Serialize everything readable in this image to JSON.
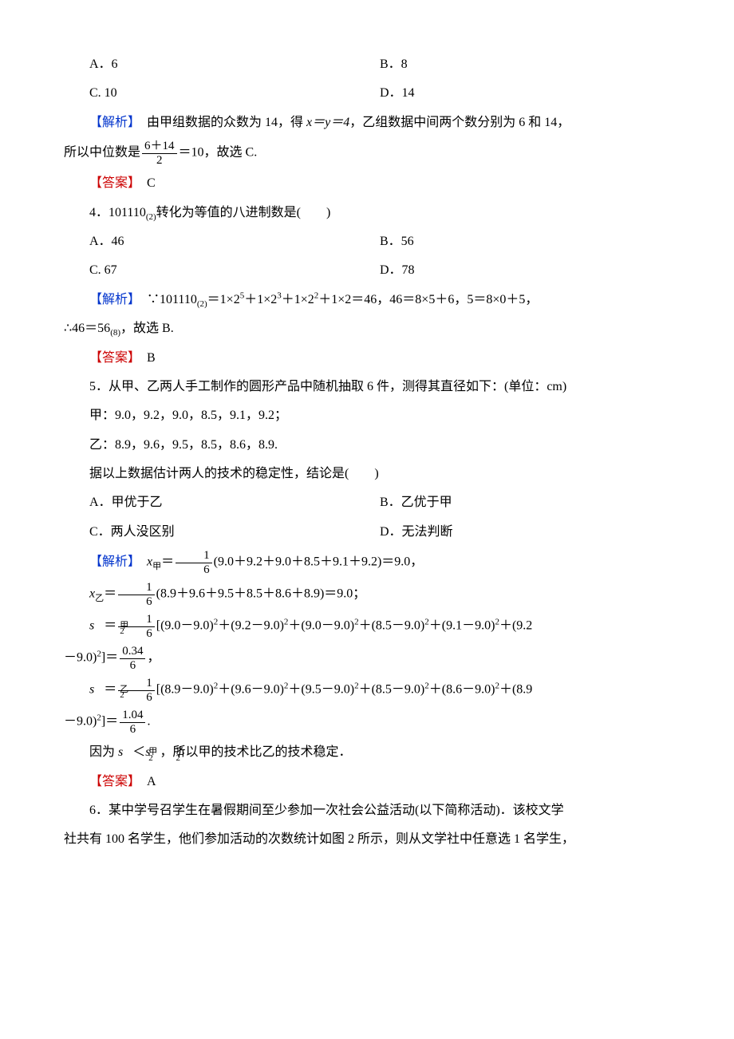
{
  "q3": {
    "options": {
      "a": "A．6",
      "b": "B．8",
      "c": "C. 10",
      "d": "D．14"
    },
    "analysis_label": "【解析】",
    "analysis_text1": "　由甲组数据的众数为 14，得 ",
    "analysis_math": "x＝y＝4",
    "analysis_text2": "，乙组数据中间两个数分别为 6 和 14，",
    "median_prefix": "所以中位数是",
    "median_num": "6＋14",
    "median_den": "2",
    "median_eq": "＝10，故选 C.",
    "answer_label": "【答案】",
    "answer": "　C"
  },
  "q4": {
    "stem": "4．101110(2)转化为等值的八进制数是(　　)",
    "stem_prefix": "4．101110",
    "stem_sub": "(2)",
    "stem_suffix": "转化为等值的八进制数是(　　)",
    "options": {
      "a": "A．46",
      "b": "B．56",
      "c": "C. 67",
      "d": "D．78"
    },
    "analysis_label": "【解析】",
    "analysis_line1a": "　∵101110",
    "analysis_line1b": "＝1×2",
    "analysis_line1c": "＋1×2",
    "analysis_line1d": "＋1×2",
    "analysis_line1e": "＋1×2＝46，46＝8×5＋6，5＝8×0＋5，",
    "analysis_line2": "∴46＝56",
    "analysis_line2_end": "，故选 B.",
    "answer_label": "【答案】",
    "answer": "　B"
  },
  "q5": {
    "stem": "5．从甲、乙两人手工制作的圆形产品中随机抽取 6 件，测得其直径如下：(单位：cm)",
    "line_jia": "甲：9.0，9.2，9.0，8.5，9.1，9.2；",
    "line_yi": "乙：8.9，9.6，9.5，8.5，8.6，8.9.",
    "question": "据以上数据估计两人的技术的稳定性，结论是(　　)",
    "options": {
      "a": "A．甲优于乙",
      "b": "B．乙优于甲",
      "c": "C．两人没区别",
      "d": "D．无法判断"
    },
    "analysis_label": "【解析】",
    "mean_jia_prefix": "　x",
    "mean_jia_sub": "甲",
    "mean_jia_eq": "＝",
    "one_over_six_num": "1",
    "one_over_six_den": "6",
    "mean_jia_expr": "(9.0＋9.2＋9.0＋8.5＋9.1＋9.2)＝9.0，",
    "mean_yi_prefix": "x",
    "mean_yi_sub": "乙",
    "mean_yi_expr": "(8.9＋9.6＋9.5＋8.5＋8.6＋8.9)＝9.0；",
    "var_jia_p1": "[(9.0－9.0)",
    "var_jia_p2": "＋(9.2－9.0)",
    "var_jia_p3": "＋(9.0－9.0)",
    "var_jia_p4": "＋(8.5－9.0)",
    "var_jia_p5": "＋(9.1－9.0)",
    "var_jia_p6": "＋(9.2",
    "var_jia_end": "－9.0)",
    "var_jia_result_num": "0.34",
    "var_jia_result_den": "6",
    "var_jia_tail": "，",
    "var_yi_p1": "[(8.9－9.0)",
    "var_yi_p2": "＋(9.6－9.0)",
    "var_yi_p3": "＋(9.5－9.0)",
    "var_yi_p4": "＋(8.5－9.0)",
    "var_yi_p5": "＋(8.6－9.0)",
    "var_yi_p6": "＋(8.9",
    "var_yi_end": "－9.0)",
    "var_yi_result_num": "1.04",
    "var_yi_result_den": "6",
    "var_yi_tail": ".",
    "conclusion_a": "因为 ",
    "conclusion_sym1": "s",
    "conclusion_sup1": "甲",
    "conclusion_lt": "＜",
    "conclusion_sym2": "s",
    "conclusion_sup2": "乙",
    "conclusion_b": "，所以甲的技术比乙的技术稳定．",
    "answer_label": "【答案】",
    "answer": "　A"
  },
  "q6": {
    "line1": "6．某中学号召学生在暑假期间至少参加一次社会公益活动(以下简称活动)．该校文学",
    "line2": "社共有 100 名学生，他们参加活动的次数统计如图 2 所示，则从文学社中任意选 1 名学生，"
  },
  "labels": {
    "s_var": "s",
    "sq": "2",
    "jia": "甲",
    "yi": "乙",
    "eq": "＝",
    "rbracket_eq": "]＝"
  },
  "colors": {
    "blue": "#0033cc",
    "red": "#cc0000",
    "text": "#000000",
    "bg": "#ffffff"
  },
  "fonts": {
    "body_size": 16,
    "sup_size": 11
  }
}
